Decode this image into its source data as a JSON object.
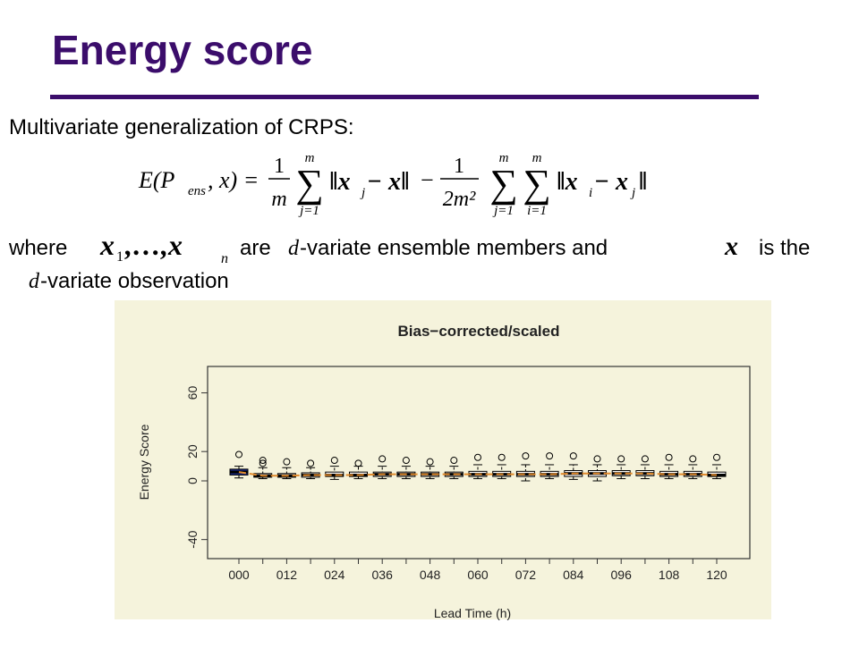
{
  "slide": {
    "title": "Energy score",
    "intro": "Multivariate generalization of CRPS:",
    "formula": {
      "lhs": "E(P",
      "lhs_sub": "ens",
      "lhs_end": ", x) =",
      "frac1_num": "1",
      "frac1_den": "m",
      "sum_top": "m",
      "sum1_bottom": "j=1",
      "term1": "‖x",
      "term1_sub": "j",
      "term1_end": " − x‖",
      "minus": "−",
      "frac2_num": "1",
      "frac2_den": "2m²",
      "sum2_bottom": "j=1",
      "sum3_bottom": "i=1",
      "term2": "‖x",
      "term2_sub": "i",
      "term2_mid": " − x",
      "term2_sub2": "j",
      "term2_end": "‖",
      "sigma": "∑"
    },
    "where": {
      "w1": "where",
      "m1": "x",
      "m1_sub": "1",
      "m1_mid": ",…,x",
      "m1_sub2": "n",
      "w2": "are",
      "d1": "d",
      "w3": "-variate ensemble members and",
      "m2": "x",
      "w4": "is the",
      "d2": "d",
      "w5": "-variate observation"
    }
  },
  "chart_data": {
    "type": "boxplot",
    "title": "Bias−corrected/scaled",
    "ylabel": "Energy Score",
    "xlabel": "Lead Time (h)",
    "categories": [
      "000",
      null,
      "012",
      null,
      "024",
      null,
      "036",
      null,
      "048",
      null,
      "060",
      null,
      "072",
      null,
      "084",
      null,
      "096",
      null,
      "108",
      null,
      "120"
    ],
    "low": [
      2,
      1.5,
      1.5,
      1.5,
      1,
      1.5,
      1.5,
      1.5,
      1.5,
      1.5,
      1.5,
      1.5,
      0,
      1.5,
      1,
      0,
      1.5,
      1.5,
      1.5,
      1.5,
      1.5
    ],
    "q1": [
      4,
      2.5,
      2.5,
      2.5,
      3,
      3,
      3,
      3,
      3,
      3,
      3,
      3,
      3,
      3,
      3,
      3,
      3.5,
      3.5,
      3,
      3,
      3
    ],
    "median": [
      6,
      3.5,
      3.5,
      4,
      4,
      4,
      4.5,
      4.5,
      4.5,
      4.5,
      4.5,
      4.5,
      4.5,
      4.5,
      5,
      5,
      5,
      5,
      4.5,
      4.5,
      4
    ],
    "q3": [
      8,
      5,
      5,
      5.5,
      6,
      6,
      6,
      6,
      6,
      6,
      6.5,
      6.5,
      6.5,
      6.5,
      7,
      7,
      7,
      7,
      6.5,
      6.5,
      6
    ],
    "high": [
      10,
      9,
      9,
      9,
      10,
      10,
      10,
      10,
      10,
      10,
      11,
      11,
      11,
      11,
      11,
      11,
      11,
      11,
      11,
      11,
      11
    ],
    "outliers": [
      [
        18
      ],
      [
        14,
        12
      ],
      [
        13
      ],
      [
        12
      ],
      [
        14
      ],
      [
        12
      ],
      [
        15
      ],
      [
        14
      ],
      [
        13
      ],
      [
        14
      ],
      [
        16
      ],
      [
        16
      ],
      [
        17
      ],
      [
        17
      ],
      [
        17
      ],
      [
        15
      ],
      [
        15
      ],
      [
        15
      ],
      [
        16
      ],
      [
        15
      ],
      [
        16
      ]
    ],
    "color": "#000000",
    "median_line_color": "#e08a2c",
    "ylim": [
      -53,
      78
    ],
    "yticks": [
      -40,
      0,
      20,
      60
    ]
  }
}
